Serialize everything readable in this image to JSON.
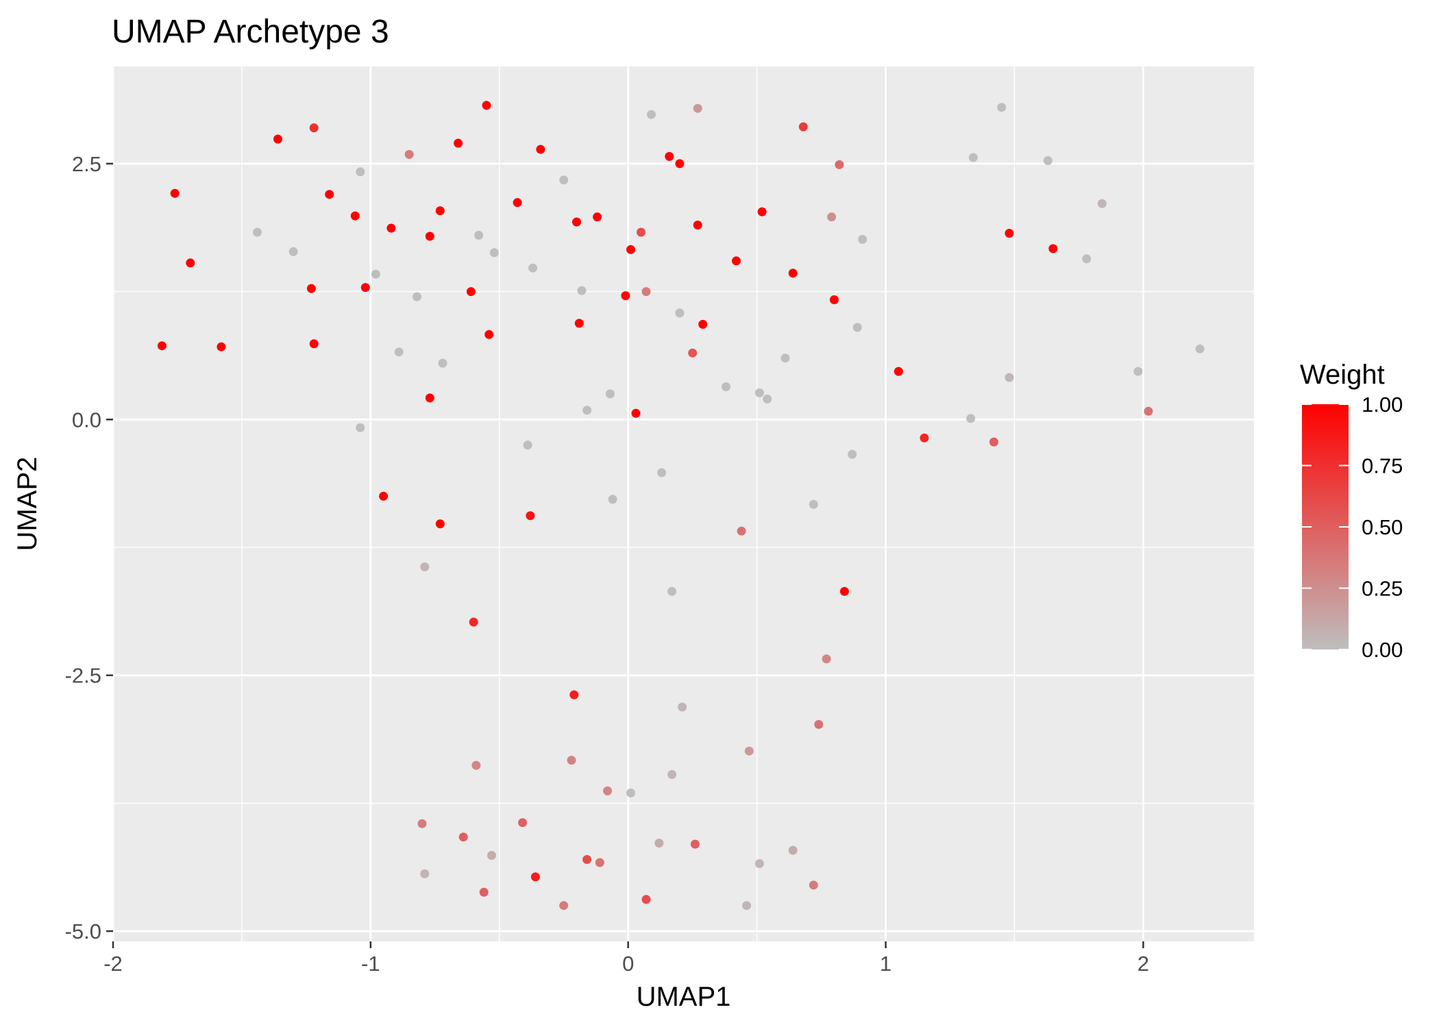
{
  "chart_data": {
    "type": "scatter",
    "title": "UMAP Archetype 3",
    "xlabel": "UMAP1",
    "ylabel": "UMAP2",
    "xlim": [
      -2.0,
      2.43
    ],
    "ylim": [
      -5.1,
      3.45
    ],
    "x_ticks": [
      -2,
      -1,
      0,
      1,
      2
    ],
    "x_tick_labels": [
      "-2",
      "-1",
      "0",
      "1",
      "2"
    ],
    "y_ticks": [
      2.5,
      0.0,
      -2.5,
      -5.0
    ],
    "y_tick_labels": [
      "2.5",
      "0.0",
      "-2.5",
      "-5.0"
    ],
    "grid": true,
    "colors": {
      "panel_background": "#ebebeb",
      "grid_line": "#ffffff",
      "low": "#bebebe",
      "high": "#ff0000"
    },
    "legend": {
      "title": "Weight",
      "position": "right",
      "ticks": [
        1.0,
        0.75,
        0.5,
        0.25,
        0.0
      ],
      "tick_labels": [
        "1.00",
        "0.75",
        "0.50",
        "0.25",
        "0.00"
      ]
    },
    "points": [
      {
        "x": -1.81,
        "y": 0.72,
        "w": 1.0
      },
      {
        "x": -1.76,
        "y": 2.21,
        "w": 1.0
      },
      {
        "x": -1.7,
        "y": 1.53,
        "w": 1.0
      },
      {
        "x": -1.58,
        "y": 0.71,
        "w": 1.0
      },
      {
        "x": -1.44,
        "y": 1.83,
        "w": 0.0
      },
      {
        "x": -1.36,
        "y": 2.74,
        "w": 1.0
      },
      {
        "x": -1.3,
        "y": 1.64,
        "w": 0.0
      },
      {
        "x": -1.23,
        "y": 1.28,
        "w": 1.0
      },
      {
        "x": -1.22,
        "y": 2.85,
        "w": 0.75
      },
      {
        "x": -1.22,
        "y": 0.74,
        "w": 1.0
      },
      {
        "x": -1.16,
        "y": 2.2,
        "w": 1.0
      },
      {
        "x": -1.06,
        "y": 1.99,
        "w": 1.0
      },
      {
        "x": -1.04,
        "y": 2.42,
        "w": 0.0
      },
      {
        "x": -1.04,
        "y": -0.08,
        "w": 0.0
      },
      {
        "x": -1.02,
        "y": 1.29,
        "w": 1.0
      },
      {
        "x": -0.98,
        "y": 1.42,
        "w": 0.0
      },
      {
        "x": -0.95,
        "y": -0.75,
        "w": 1.0
      },
      {
        "x": -0.92,
        "y": 1.87,
        "w": 1.0
      },
      {
        "x": -0.89,
        "y": 0.66,
        "w": 0.0
      },
      {
        "x": -0.85,
        "y": 2.59,
        "w": 0.35
      },
      {
        "x": -0.82,
        "y": 1.2,
        "w": 0.0
      },
      {
        "x": -0.79,
        "y": -1.44,
        "w": 0.05
      },
      {
        "x": -0.79,
        "y": -4.44,
        "w": 0.05
      },
      {
        "x": -0.8,
        "y": -3.95,
        "w": 0.35
      },
      {
        "x": -0.77,
        "y": 1.79,
        "w": 1.0
      },
      {
        "x": -0.77,
        "y": 0.21,
        "w": 1.0
      },
      {
        "x": -0.73,
        "y": 2.04,
        "w": 1.0
      },
      {
        "x": -0.73,
        "y": -1.02,
        "w": 1.0
      },
      {
        "x": -0.72,
        "y": 0.55,
        "w": 0.0
      },
      {
        "x": -0.66,
        "y": 2.7,
        "w": 1.0
      },
      {
        "x": -0.64,
        "y": -4.08,
        "w": 0.5
      },
      {
        "x": -0.61,
        "y": 1.25,
        "w": 1.0
      },
      {
        "x": -0.6,
        "y": -1.98,
        "w": 0.8
      },
      {
        "x": -0.59,
        "y": -3.38,
        "w": 0.3
      },
      {
        "x": -0.58,
        "y": 1.8,
        "w": 0.0
      },
      {
        "x": -0.56,
        "y": -4.62,
        "w": 0.5
      },
      {
        "x": -0.55,
        "y": 3.07,
        "w": 1.0
      },
      {
        "x": -0.54,
        "y": 0.83,
        "w": 1.0
      },
      {
        "x": -0.53,
        "y": -4.26,
        "w": 0.1
      },
      {
        "x": -0.52,
        "y": 1.63,
        "w": 0.0
      },
      {
        "x": -0.43,
        "y": 2.12,
        "w": 1.0
      },
      {
        "x": -0.41,
        "y": -3.94,
        "w": 0.5
      },
      {
        "x": -0.39,
        "y": -0.25,
        "w": 0.0
      },
      {
        "x": -0.38,
        "y": -0.94,
        "w": 0.9
      },
      {
        "x": -0.37,
        "y": 1.48,
        "w": 0.0
      },
      {
        "x": -0.36,
        "y": -4.47,
        "w": 0.85
      },
      {
        "x": -0.34,
        "y": 2.64,
        "w": 1.0
      },
      {
        "x": -0.25,
        "y": 2.34,
        "w": 0.0
      },
      {
        "x": -0.25,
        "y": -4.75,
        "w": 0.35
      },
      {
        "x": -0.22,
        "y": -3.33,
        "w": 0.3
      },
      {
        "x": -0.21,
        "y": -2.69,
        "w": 0.85
      },
      {
        "x": -0.2,
        "y": 1.93,
        "w": 1.0
      },
      {
        "x": -0.19,
        "y": 0.94,
        "w": 1.0
      },
      {
        "x": -0.18,
        "y": 1.26,
        "w": 0.0
      },
      {
        "x": -0.16,
        "y": 0.09,
        "w": 0.0
      },
      {
        "x": -0.16,
        "y": -4.3,
        "w": 0.6
      },
      {
        "x": -0.12,
        "y": 1.98,
        "w": 1.0
      },
      {
        "x": -0.11,
        "y": -4.33,
        "w": 0.4
      },
      {
        "x": -0.08,
        "y": -3.63,
        "w": 0.3
      },
      {
        "x": -0.07,
        "y": 0.25,
        "w": 0.0
      },
      {
        "x": -0.06,
        "y": -0.78,
        "w": 0.0
      },
      {
        "x": -0.01,
        "y": 1.21,
        "w": 1.0
      },
      {
        "x": 0.01,
        "y": 1.66,
        "w": 1.0
      },
      {
        "x": 0.01,
        "y": -3.65,
        "w": 0.0
      },
      {
        "x": 0.03,
        "y": 0.06,
        "w": 1.0
      },
      {
        "x": 0.05,
        "y": 1.83,
        "w": 0.6
      },
      {
        "x": 0.07,
        "y": 1.25,
        "w": 0.35
      },
      {
        "x": 0.07,
        "y": -4.69,
        "w": 0.6
      },
      {
        "x": 0.09,
        "y": 2.98,
        "w": 0.0
      },
      {
        "x": 0.12,
        "y": -4.14,
        "w": 0.1
      },
      {
        "x": 0.13,
        "y": -0.52,
        "w": 0.0
      },
      {
        "x": 0.16,
        "y": 2.57,
        "w": 1.0
      },
      {
        "x": 0.17,
        "y": -1.68,
        "w": 0.0
      },
      {
        "x": 0.17,
        "y": -3.47,
        "w": 0.05
      },
      {
        "x": 0.2,
        "y": 2.5,
        "w": 1.0
      },
      {
        "x": 0.2,
        "y": 1.04,
        "w": 0.0
      },
      {
        "x": 0.21,
        "y": -2.81,
        "w": 0.05
      },
      {
        "x": 0.25,
        "y": 0.65,
        "w": 0.55
      },
      {
        "x": 0.26,
        "y": -4.15,
        "w": 0.5
      },
      {
        "x": 0.27,
        "y": 3.04,
        "w": 0.2
      },
      {
        "x": 0.27,
        "y": 1.9,
        "w": 1.0
      },
      {
        "x": 0.29,
        "y": 0.93,
        "w": 1.0
      },
      {
        "x": 0.38,
        "y": 0.32,
        "w": 0.0
      },
      {
        "x": 0.42,
        "y": 1.55,
        "w": 1.0
      },
      {
        "x": 0.44,
        "y": -1.09,
        "w": 0.4
      },
      {
        "x": 0.46,
        "y": -4.75,
        "w": 0.05
      },
      {
        "x": 0.47,
        "y": -3.24,
        "w": 0.2
      },
      {
        "x": 0.51,
        "y": 0.26,
        "w": 0.0
      },
      {
        "x": 0.51,
        "y": -4.34,
        "w": 0.05
      },
      {
        "x": 0.52,
        "y": 2.03,
        "w": 1.0
      },
      {
        "x": 0.54,
        "y": 0.2,
        "w": 0.0
      },
      {
        "x": 0.61,
        "y": 0.6,
        "w": 0.0
      },
      {
        "x": 0.64,
        "y": 1.43,
        "w": 1.0
      },
      {
        "x": 0.64,
        "y": -4.21,
        "w": 0.1
      },
      {
        "x": 0.68,
        "y": 2.86,
        "w": 0.7
      },
      {
        "x": 0.72,
        "y": -0.83,
        "w": 0.0
      },
      {
        "x": 0.72,
        "y": -4.55,
        "w": 0.35
      },
      {
        "x": 0.74,
        "y": -2.98,
        "w": 0.4
      },
      {
        "x": 0.77,
        "y": -2.34,
        "w": 0.3
      },
      {
        "x": 0.79,
        "y": 1.98,
        "w": 0.25
      },
      {
        "x": 0.8,
        "y": 1.17,
        "w": 1.0
      },
      {
        "x": 0.82,
        "y": 2.49,
        "w": 0.45
      },
      {
        "x": 0.84,
        "y": -1.68,
        "w": 1.0
      },
      {
        "x": 0.87,
        "y": -0.34,
        "w": 0.0
      },
      {
        "x": 0.89,
        "y": 0.9,
        "w": 0.0
      },
      {
        "x": 0.91,
        "y": 1.76,
        "w": 0.0
      },
      {
        "x": 1.05,
        "y": 0.47,
        "w": 1.0
      },
      {
        "x": 1.15,
        "y": -0.18,
        "w": 0.8
      },
      {
        "x": 1.33,
        "y": 0.01,
        "w": 0.0
      },
      {
        "x": 1.34,
        "y": 2.56,
        "w": 0.0
      },
      {
        "x": 1.42,
        "y": -0.22,
        "w": 0.5
      },
      {
        "x": 1.45,
        "y": 3.05,
        "w": 0.0
      },
      {
        "x": 1.48,
        "y": 1.82,
        "w": 1.0
      },
      {
        "x": 1.48,
        "y": 0.41,
        "w": 0.05
      },
      {
        "x": 1.63,
        "y": 2.53,
        "w": 0.0
      },
      {
        "x": 1.65,
        "y": 1.67,
        "w": 1.0
      },
      {
        "x": 1.78,
        "y": 1.57,
        "w": 0.0
      },
      {
        "x": 1.84,
        "y": 2.11,
        "w": 0.05
      },
      {
        "x": 1.98,
        "y": 0.47,
        "w": 0.0
      },
      {
        "x": 2.02,
        "y": 0.08,
        "w": 0.4
      },
      {
        "x": 2.22,
        "y": 0.69,
        "w": 0.0
      }
    ]
  }
}
